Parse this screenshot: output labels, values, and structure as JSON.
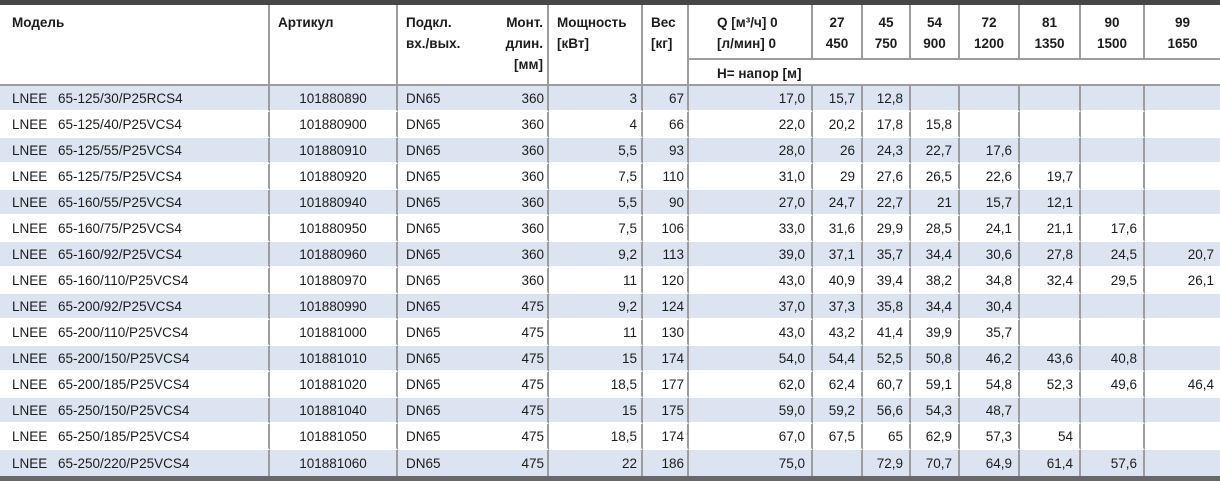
{
  "table": {
    "header": {
      "model": "Модель",
      "article": "Артикул",
      "connection_line1": "Подкл.",
      "connection_line2": "вх./вых.",
      "mount_line1": "Монт.",
      "mount_line2": "длин.",
      "mount_line3": "[мм]",
      "power_line1": "Мощность",
      "power_line2": "[кВт]",
      "weight_line1": "Вес",
      "weight_line2": "[кг]",
      "q_line1": "Q [м³/ч] 0",
      "q_line2": "[л/мин] 0",
      "flow_columns": [
        {
          "m3h": "27",
          "lmin": "450"
        },
        {
          "m3h": "45",
          "lmin": "750"
        },
        {
          "m3h": "54",
          "lmin": "900"
        },
        {
          "m3h": "72",
          "lmin": "1200"
        },
        {
          "m3h": "81",
          "lmin": "1350"
        },
        {
          "m3h": "90",
          "lmin": "1500"
        },
        {
          "m3h": "99",
          "lmin": "1650"
        }
      ],
      "head_label": "H= напор [м]"
    },
    "rows": [
      {
        "series": "LNEE",
        "code": "65-125/30/P25RCS4",
        "article": "101880890",
        "connection": "DN65",
        "mount_length": "360",
        "power": "3",
        "weight": "67",
        "head": [
          "17,0",
          "15,7",
          "12,8",
          "",
          "",
          "",
          "",
          ""
        ]
      },
      {
        "series": "LNEE",
        "code": "65-125/40/P25VCS4",
        "article": "101880900",
        "connection": "DN65",
        "mount_length": "360",
        "power": "4",
        "weight": "66",
        "head": [
          "22,0",
          "20,2",
          "17,8",
          "15,8",
          "",
          "",
          "",
          ""
        ]
      },
      {
        "series": "LNEE",
        "code": "65-125/55/P25VCS4",
        "article": "101880910",
        "connection": "DN65",
        "mount_length": "360",
        "power": "5,5",
        "weight": "93",
        "head": [
          "28,0",
          "26",
          "24,3",
          "22,7",
          "17,6",
          "",
          "",
          ""
        ]
      },
      {
        "series": "LNEE",
        "code": "65-125/75/P25VCS4",
        "article": "101880920",
        "connection": "DN65",
        "mount_length": "360",
        "power": "7,5",
        "weight": "110",
        "head": [
          "31,0",
          "29",
          "27,6",
          "26,5",
          "22,6",
          "19,7",
          "",
          ""
        ]
      },
      {
        "series": "LNEE",
        "code": "65-160/55/P25VCS4",
        "article": "101880940",
        "connection": "DN65",
        "mount_length": "360",
        "power": "5,5",
        "weight": "90",
        "head": [
          "27,0",
          "24,7",
          "22,7",
          "21",
          "15,7",
          "12,1",
          "",
          ""
        ]
      },
      {
        "series": "LNEE",
        "code": "65-160/75/P25VCS4",
        "article": "101880950",
        "connection": "DN65",
        "mount_length": "360",
        "power": "7,5",
        "weight": "106",
        "head": [
          "33,0",
          "31,6",
          "29,9",
          "28,5",
          "24,1",
          "21,1",
          "17,6",
          ""
        ]
      },
      {
        "series": "LNEE",
        "code": "65-160/92/P25VCS4",
        "article": "101880960",
        "connection": "DN65",
        "mount_length": "360",
        "power": "9,2",
        "weight": "113",
        "head": [
          "39,0",
          "37,1",
          "35,7",
          "34,4",
          "30,6",
          "27,8",
          "24,5",
          "20,7"
        ]
      },
      {
        "series": "LNEE",
        "code": "65-160/110/P25VCS4",
        "article": "101880970",
        "connection": "DN65",
        "mount_length": "360",
        "power": "11",
        "weight": "120",
        "head": [
          "43,0",
          "40,9",
          "39,4",
          "38,2",
          "34,8",
          "32,4",
          "29,5",
          "26,1"
        ]
      },
      {
        "series": "LNEE",
        "code": "65-200/92/P25VCS4",
        "article": "101880990",
        "connection": "DN65",
        "mount_length": "475",
        "power": "9,2",
        "weight": "124",
        "head": [
          "37,0",
          "37,3",
          "35,8",
          "34,4",
          "30,4",
          "",
          "",
          ""
        ]
      },
      {
        "series": "LNEE",
        "code": "65-200/110/P25VCS4",
        "article": "101881000",
        "connection": "DN65",
        "mount_length": "475",
        "power": "11",
        "weight": "130",
        "head": [
          "43,0",
          "43,2",
          "41,4",
          "39,9",
          "35,7",
          "",
          "",
          ""
        ]
      },
      {
        "series": "LNEE",
        "code": "65-200/150/P25VCS4",
        "article": "101881010",
        "connection": "DN65",
        "mount_length": "475",
        "power": "15",
        "weight": "174",
        "head": [
          "54,0",
          "54,4",
          "52,5",
          "50,8",
          "46,2",
          "43,6",
          "40,8",
          ""
        ]
      },
      {
        "series": "LNEE",
        "code": "65-200/185/P25VCS4",
        "article": "101881020",
        "connection": "DN65",
        "mount_length": "475",
        "power": "18,5",
        "weight": "177",
        "head": [
          "62,0",
          "62,4",
          "60,7",
          "59,1",
          "54,8",
          "52,3",
          "49,6",
          "46,4"
        ]
      },
      {
        "series": "LNEE",
        "code": "65-250/150/P25VCS4",
        "article": "101881040",
        "connection": "DN65",
        "mount_length": "475",
        "power": "15",
        "weight": "175",
        "head": [
          "59,0",
          "59,2",
          "56,6",
          "54,3",
          "48,7",
          "",
          "",
          ""
        ]
      },
      {
        "series": "LNEE",
        "code": "65-250/185/P25VCS4",
        "article": "101881050",
        "connection": "DN65",
        "mount_length": "475",
        "power": "18,5",
        "weight": "174",
        "head": [
          "67,0",
          "67,5",
          "65",
          "62,9",
          "57,3",
          "54",
          "",
          ""
        ]
      },
      {
        "series": "LNEE",
        "code": "65-250/220/P25VCS4",
        "article": "101881060",
        "connection": "DN65",
        "mount_length": "475",
        "power": "22",
        "weight": "186",
        "head": [
          "75,0",
          "",
          "72,9",
          "70,7",
          "64,9",
          "61,4",
          "57,6",
          ""
        ]
      }
    ]
  },
  "colors": {
    "stripe": "#dbe4f0",
    "grid": "#9d9d9d",
    "frame_top": "#474747",
    "frame_bottom": "#686868",
    "ink": "#1c1c1c"
  }
}
